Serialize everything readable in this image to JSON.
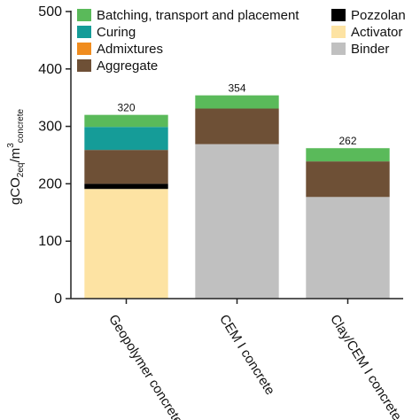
{
  "chart_data": {
    "type": "bar",
    "stacked": true,
    "categories": [
      "Geopolymer concrete",
      "CEM I concrete",
      "Clay/CEM I concrete"
    ],
    "totals": [
      "320",
      "354",
      "262"
    ],
    "ylabel": {
      "main": "gCO",
      "sub1": "2eq",
      "mid": "/m",
      "sup": "3",
      "sub2": "concrete"
    },
    "ylim": [
      0,
      500
    ],
    "yticks": [
      "0",
      "100",
      "200",
      "300",
      "400",
      "500"
    ],
    "grid": false,
    "legend_placement": "top",
    "series": [
      {
        "name": "Binder",
        "color": "#c0c0c0",
        "values": [
          0,
          269,
          177
        ]
      },
      {
        "name": "Activator",
        "color": "#fde3a3",
        "values": [
          191,
          0,
          0
        ]
      },
      {
        "name": "Pozzolan",
        "color": "#000000",
        "values": [
          9,
          0,
          0
        ]
      },
      {
        "name": "Aggregate",
        "color": "#6e5036",
        "values": [
          59,
          62,
          62
        ]
      },
      {
        "name": "Admixtures",
        "color": "#f08c1e",
        "values": [
          0,
          0,
          0
        ]
      },
      {
        "name": "Curing",
        "color": "#159c98",
        "values": [
          40,
          0,
          0
        ]
      },
      {
        "name": "Batching, transport and placement",
        "color": "#5aba5a",
        "values": [
          21,
          23,
          23
        ]
      }
    ],
    "legend_order": [
      "Batching, transport and placement",
      "Curing",
      "Admixtures",
      "Aggregate",
      "Pozzolan",
      "Activator",
      "Binder"
    ]
  }
}
